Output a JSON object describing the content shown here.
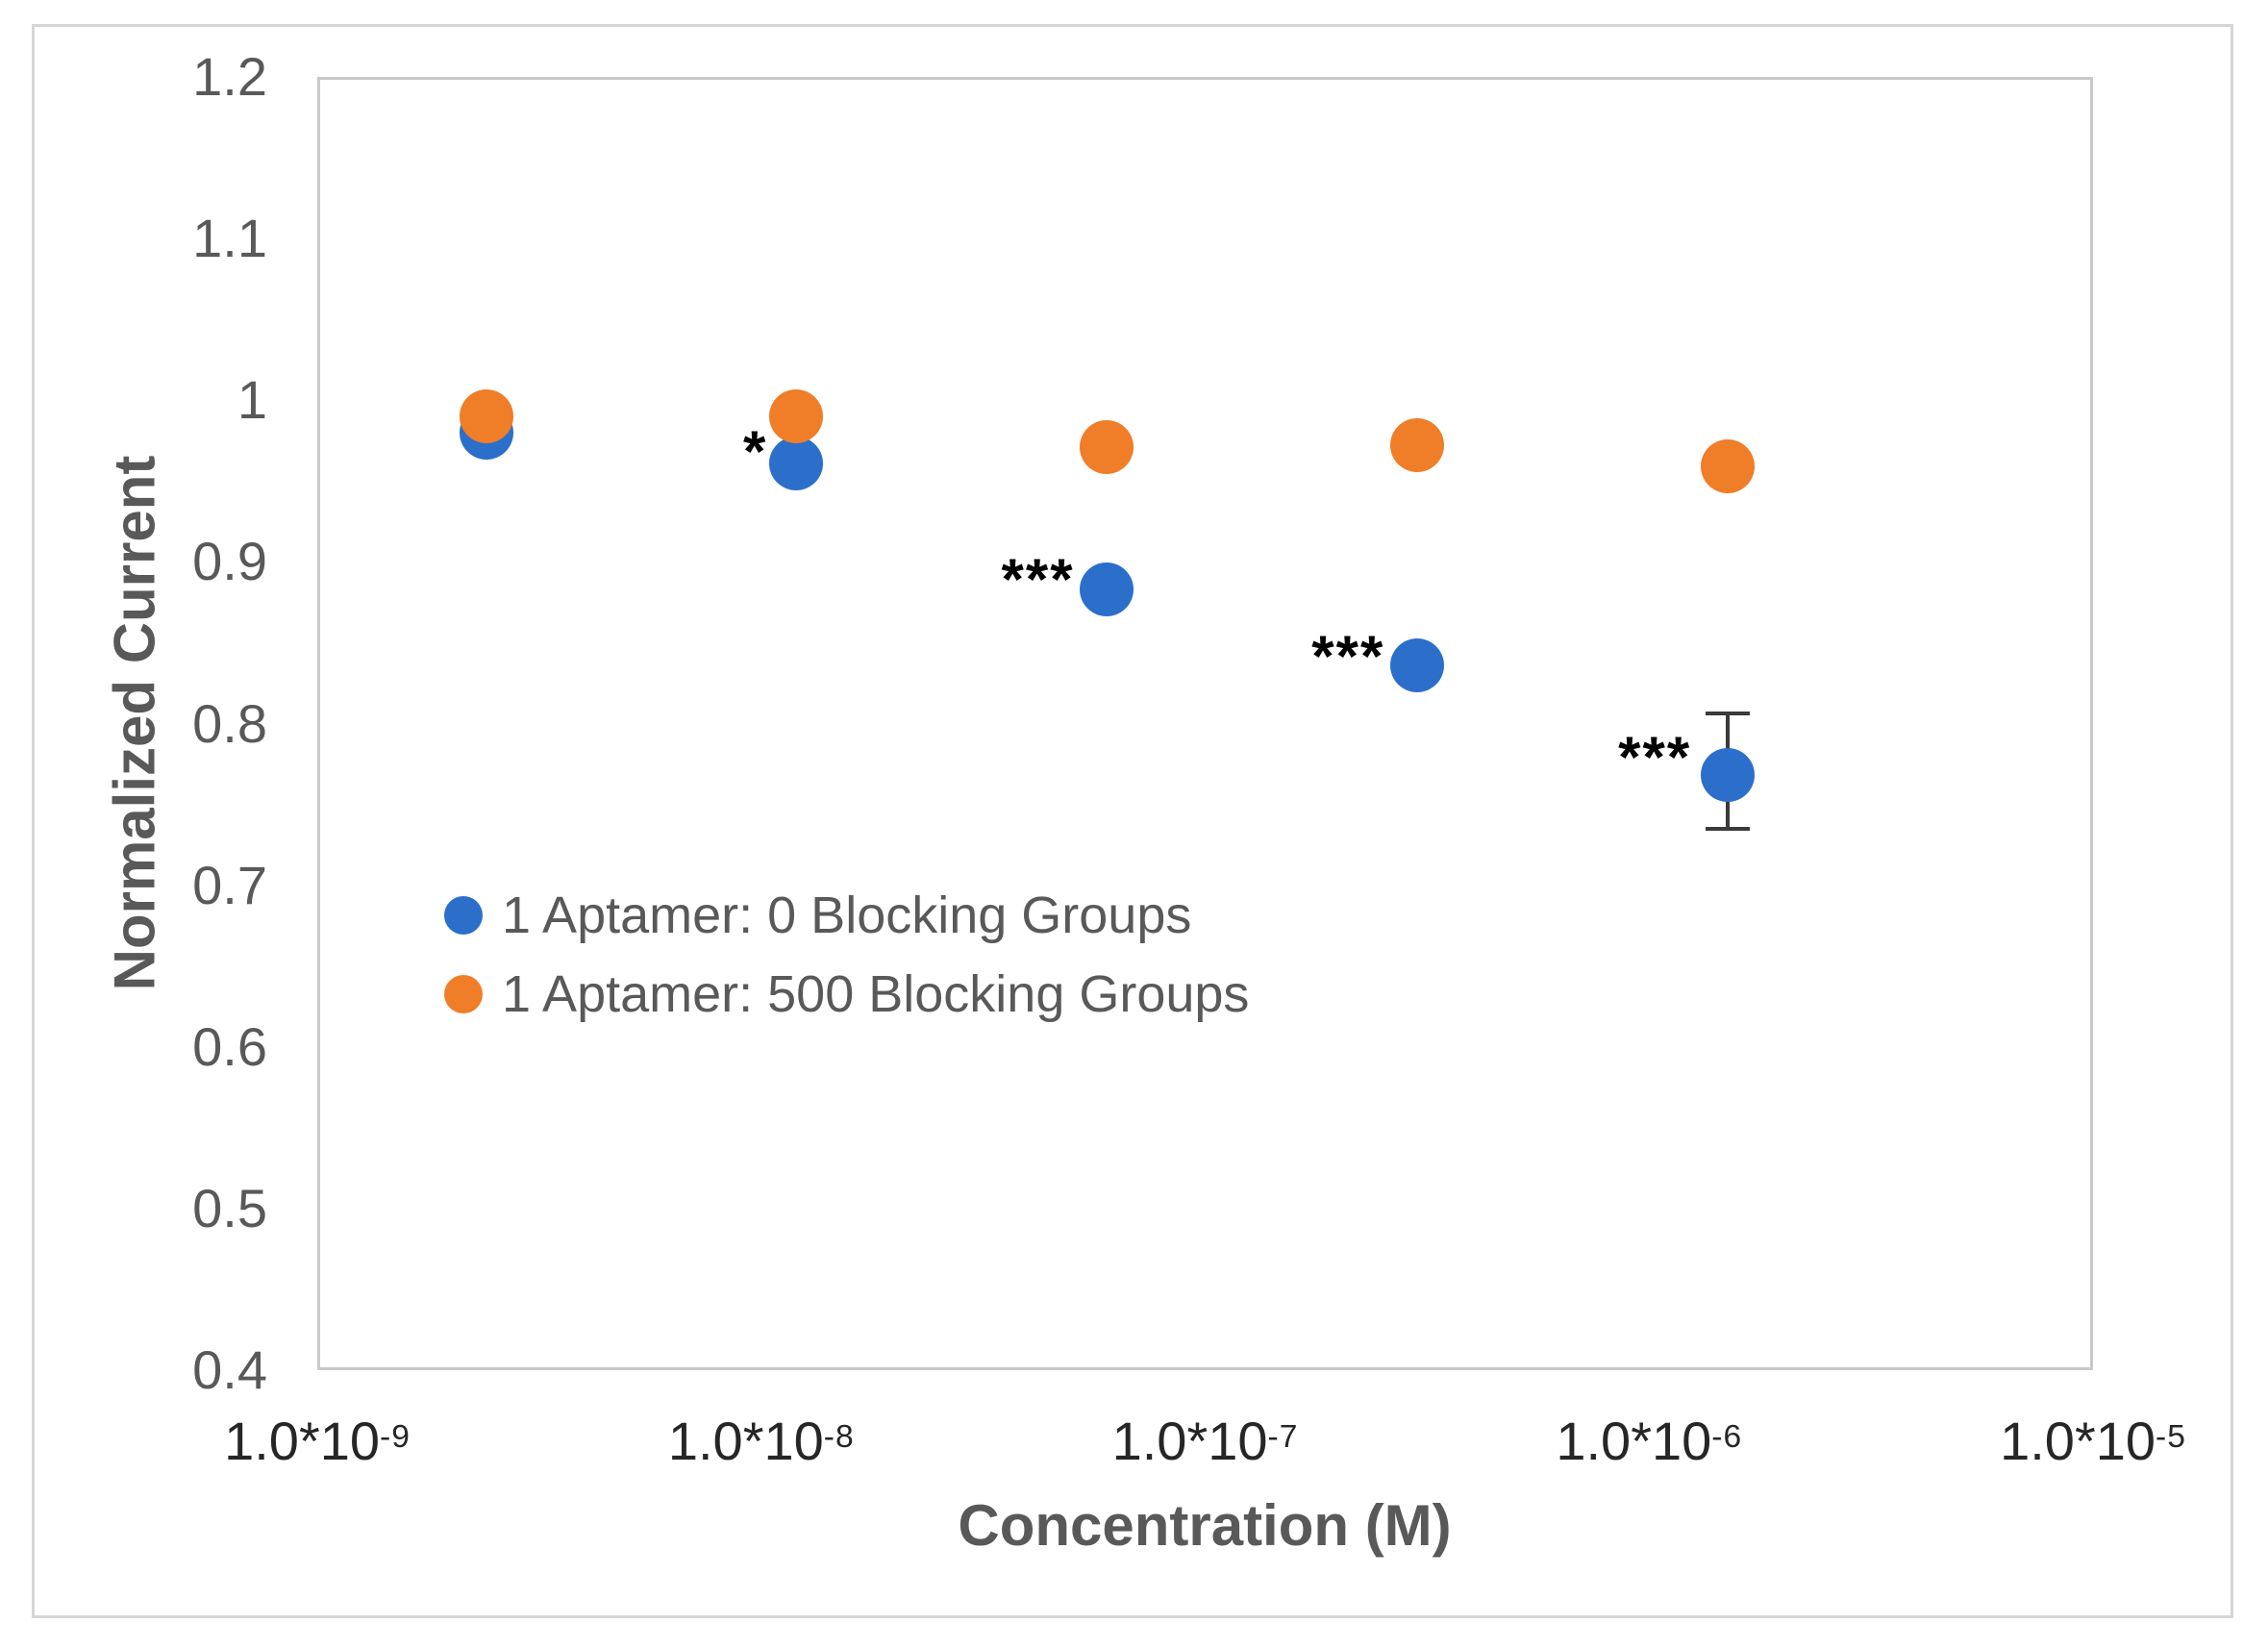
{
  "figure": {
    "background": "#ffffff",
    "frame_border_color": "#d6d6d6"
  },
  "colors": {
    "blue_series": "#2b6fcb",
    "orange_series": "#f07d28",
    "gridline": "#d9d9d9",
    "plot_border": "#c9c9c9",
    "axis_title_text": "#595959",
    "y_tick_text": "#595959",
    "x_tick_text": "#262626",
    "legend_text": "#595959",
    "error_bar": "#3a3a3a",
    "annotation_text": "#000000"
  },
  "chart_data": {
    "type": "scatter",
    "title": "",
    "xlabel": "Concentration (M)",
    "ylabel": "Normalized Current",
    "x_scale": "log",
    "xlim": [
      1e-09,
      1e-05
    ],
    "ylim": [
      0.4,
      1.2
    ],
    "grid": true,
    "y_ticks": [
      {
        "value": 1.2,
        "label": "1.2"
      },
      {
        "value": 1.1,
        "label": "1.1"
      },
      {
        "value": 1.0,
        "label": "1"
      },
      {
        "value": 0.9,
        "label": "0.9"
      },
      {
        "value": 0.8,
        "label": "0.8"
      },
      {
        "value": 0.7,
        "label": "0.7"
      },
      {
        "value": 0.6,
        "label": "0.6"
      },
      {
        "value": 0.5,
        "label": "0.5"
      },
      {
        "value": 0.4,
        "label": "0.4"
      }
    ],
    "x_ticks": [
      {
        "value": 1e-09,
        "base": "1.0*10",
        "exponent": "-9"
      },
      {
        "value": 1e-08,
        "base": "1.0*10",
        "exponent": "-8"
      },
      {
        "value": 1e-07,
        "base": "1.0*10",
        "exponent": "-7"
      },
      {
        "value": 1e-06,
        "base": "1.0*10",
        "exponent": "-6"
      },
      {
        "value": 1e-05,
        "base": "1.0*10",
        "exponent": "-5"
      }
    ],
    "legend_position": "inside-left",
    "series": [
      {
        "name": "1 Aptamer: 0 Blocking Groups",
        "color": "#2b6fcb",
        "x": [
          2.4e-09,
          1.2e-08,
          6e-08,
          3e-07,
          1.5e-06
        ],
        "y": [
          0.98,
          0.961,
          0.883,
          0.836,
          0.768
        ],
        "error_bars": [
          null,
          null,
          null,
          null,
          {
            "upper": 0.806,
            "lower": 0.735
          }
        ]
      },
      {
        "name": "1 Aptamer: 500 Blocking Groups",
        "color": "#f07d28",
        "x": [
          2.4e-09,
          1.2e-08,
          6e-08,
          3e-07,
          1.5e-06
        ],
        "y": [
          0.99,
          0.99,
          0.971,
          0.972,
          0.959
        ],
        "error_bars": [
          null,
          null,
          null,
          null,
          null
        ]
      }
    ],
    "annotations": [
      {
        "text": "*",
        "x": 9.7e-09,
        "y": 0.974
      },
      {
        "text": "***",
        "x": 4.2e-08,
        "y": 0.895
      },
      {
        "text": "***",
        "x": 2.1e-07,
        "y": 0.847
      },
      {
        "text": "***",
        "x": 1.03e-06,
        "y": 0.785
      }
    ]
  }
}
